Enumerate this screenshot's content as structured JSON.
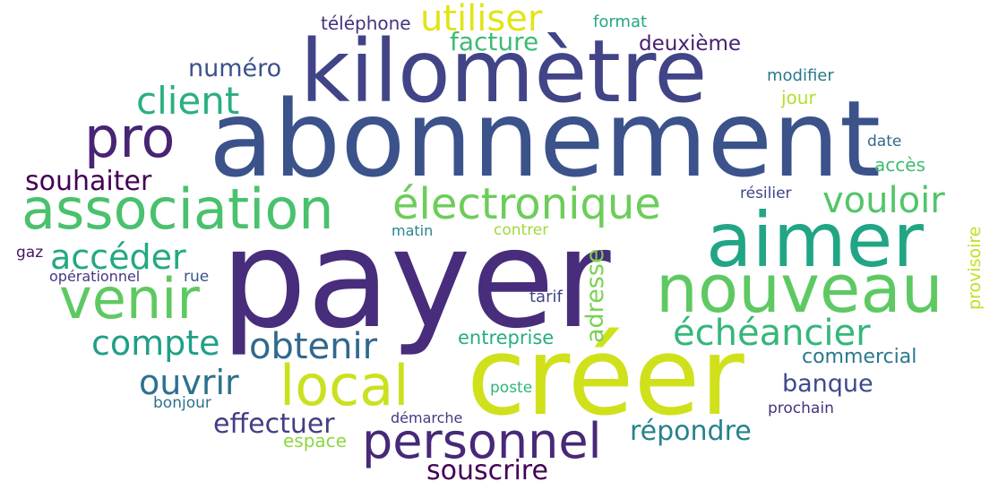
{
  "words": [
    {
      "text": "payer",
      "color": "#472d7b",
      "rotated": false
    },
    {
      "text": "abonnement",
      "color": "#3b528b",
      "rotated": false
    },
    {
      "text": "créer",
      "color": "#d0e11c",
      "rotated": false
    },
    {
      "text": "kilomètre",
      "color": "#414487",
      "rotated": false
    },
    {
      "text": "aimer",
      "color": "#21a585",
      "rotated": false
    },
    {
      "text": "nouveau",
      "color": "#5ec962",
      "rotated": false
    },
    {
      "text": "association",
      "color": "#4ac16d",
      "rotated": false
    },
    {
      "text": "pro",
      "color": "#482475",
      "rotated": false
    },
    {
      "text": "venir",
      "color": "#5ec962",
      "rotated": false
    },
    {
      "text": "local",
      "color": "#cae11f",
      "rotated": false
    },
    {
      "text": "personnel",
      "color": "#482878",
      "rotated": false
    },
    {
      "text": "électronique",
      "color": "#6ccd5a",
      "rotated": false
    },
    {
      "text": "client",
      "color": "#2ab07f",
      "rotated": false
    },
    {
      "text": "utiliser",
      "color": "#e2e418",
      "rotated": false
    },
    {
      "text": "vouloir",
      "color": "#52c569",
      "rotated": false
    },
    {
      "text": "échéancier",
      "color": "#35b779",
      "rotated": false
    },
    {
      "text": "obtenir",
      "color": "#31688e",
      "rotated": false
    },
    {
      "text": "compte",
      "color": "#1fa088",
      "rotated": false
    },
    {
      "text": "accéder",
      "color": "#22a884",
      "rotated": false
    },
    {
      "text": "ouvrir",
      "color": "#2c728e",
      "rotated": false
    },
    {
      "text": "souhaiter",
      "color": "#440154",
      "rotated": false
    },
    {
      "text": "effectuer",
      "color": "#433e85",
      "rotated": false
    },
    {
      "text": "répondre",
      "color": "#26828e",
      "rotated": false
    },
    {
      "text": "souscrire",
      "color": "#440154",
      "rotated": false
    },
    {
      "text": "facture",
      "color": "#3dbc74",
      "rotated": false
    },
    {
      "text": "numéro",
      "color": "#3b528b",
      "rotated": false
    },
    {
      "text": "banque",
      "color": "#3e4a89",
      "rotated": false
    },
    {
      "text": "adresse",
      "color": "#7ad151",
      "rotated": true
    },
    {
      "text": "deuxième",
      "color": "#482071",
      "rotated": false
    },
    {
      "text": "commercial",
      "color": "#2a788e",
      "rotated": false
    },
    {
      "text": "entreprise",
      "color": "#27ad81",
      "rotated": false
    },
    {
      "text": "téléphone",
      "color": "#46337e",
      "rotated": false
    },
    {
      "text": "format",
      "color": "#22a884",
      "rotated": false
    },
    {
      "text": "modifier",
      "color": "#2a788e",
      "rotated": false
    },
    {
      "text": "jour",
      "color": "#b5de2b",
      "rotated": false
    },
    {
      "text": "date",
      "color": "#31688e",
      "rotated": false
    },
    {
      "text": "accès",
      "color": "#3fbc73",
      "rotated": false
    },
    {
      "text": "résilier",
      "color": "#404588",
      "rotated": false
    },
    {
      "text": "provisoire",
      "color": "#c2df23",
      "rotated": true
    },
    {
      "text": "matin",
      "color": "#25858e",
      "rotated": false
    },
    {
      "text": "contrer",
      "color": "#a0da39",
      "rotated": false
    },
    {
      "text": "gaz",
      "color": "#481467",
      "rotated": false
    },
    {
      "text": "opérationnel",
      "color": "#453781",
      "rotated": false
    },
    {
      "text": "rue",
      "color": "#3a548c",
      "rotated": false
    },
    {
      "text": "tarif",
      "color": "#414487",
      "rotated": false
    },
    {
      "text": "poste",
      "color": "#2fb47c",
      "rotated": false
    },
    {
      "text": "bonjour",
      "color": "#2c728e",
      "rotated": false
    },
    {
      "text": "démarche",
      "color": "#443983",
      "rotated": false
    },
    {
      "text": "espace",
      "color": "#8ed645",
      "rotated": false
    },
    {
      "text": "prochain",
      "color": "#46327e",
      "rotated": false
    }
  ]
}
